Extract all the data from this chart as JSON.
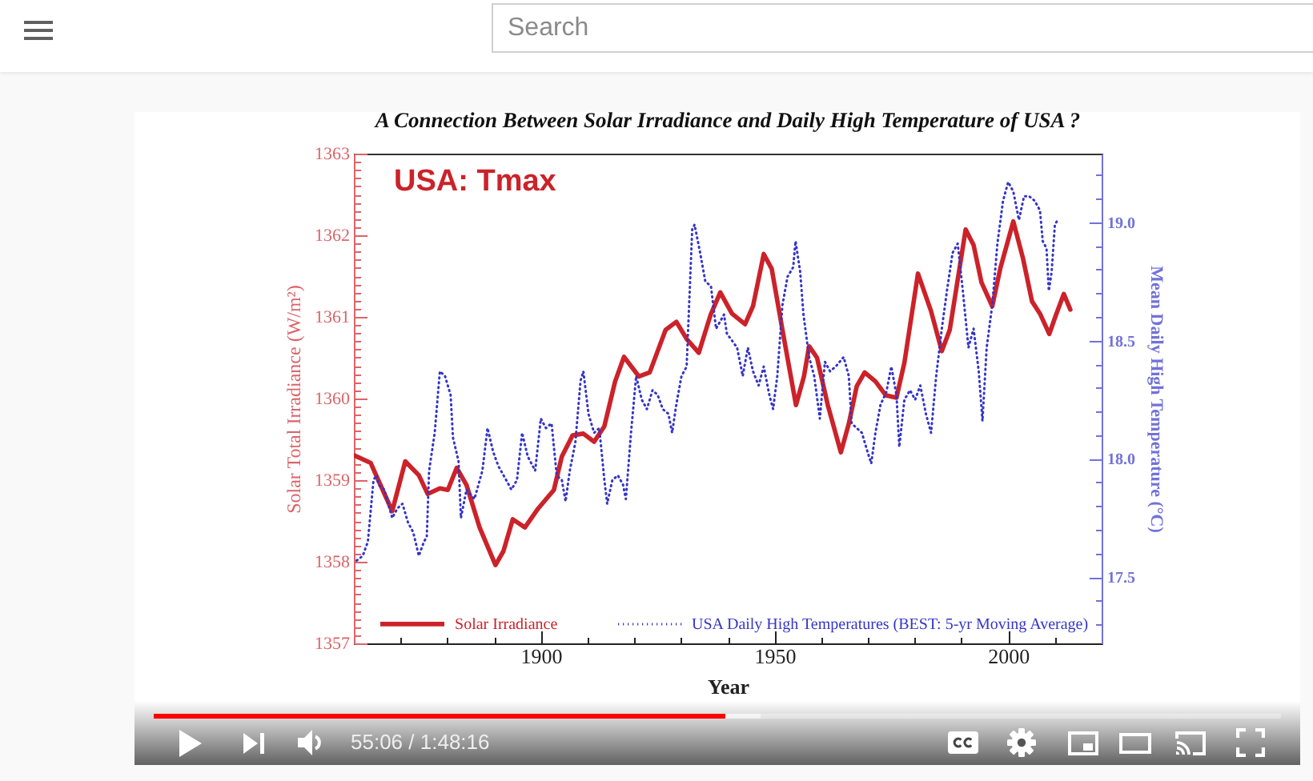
{
  "chart_data": {
    "type": "line",
    "title": "A Connection Between Solar Irradiance and Daily High Temperature of USA ?",
    "xlabel": "Year",
    "ylabel": "Solar Total Irradiance (W/m²)",
    "y2label": "Mean Daily High Temperature (°C)",
    "annotations": [
      "USA: Tmax",
      "Search",
      "55:06 / 1:48:16"
    ],
    "xlim": [
      1860,
      2020
    ],
    "xticks": [
      {
        "value": 1870,
        "label": null
      },
      {
        "value": 1880,
        "label": null
      },
      {
        "value": 1890,
        "label": null
      },
      {
        "value": 1900,
        "label": "1900"
      },
      {
        "value": 1910,
        "label": null
      },
      {
        "value": 1920,
        "label": null
      },
      {
        "value": 1930,
        "label": null
      },
      {
        "value": 1940,
        "label": null
      },
      {
        "value": 1950,
        "label": "1950"
      },
      {
        "value": 1960,
        "label": null
      },
      {
        "value": 1970,
        "label": null
      },
      {
        "value": 1980,
        "label": null
      },
      {
        "value": 1990,
        "label": null
      },
      {
        "value": 2000,
        "label": "2000"
      },
      {
        "value": 2010,
        "label": null
      }
    ],
    "ylim": [
      1357,
      1363
    ],
    "yticks": [
      {
        "value": 1357,
        "label": "1357"
      },
      {
        "value": 1357.1,
        "label": null
      },
      {
        "value": 1357.2,
        "label": null
      },
      {
        "value": 1357.3,
        "label": null
      },
      {
        "value": 1357.4,
        "label": null
      },
      {
        "value": 1357.5,
        "label": null
      },
      {
        "value": 1357.6,
        "label": null
      },
      {
        "value": 1357.7,
        "label": null
      },
      {
        "value": 1357.8,
        "label": null
      },
      {
        "value": 1357.9,
        "label": null
      },
      {
        "value": 1358,
        "label": "1358"
      },
      {
        "value": 1358.1,
        "label": null
      },
      {
        "value": 1358.2,
        "label": null
      },
      {
        "value": 1358.3,
        "label": null
      },
      {
        "value": 1358.4,
        "label": null
      },
      {
        "value": 1358.5,
        "label": null
      },
      {
        "value": 1358.6,
        "label": null
      },
      {
        "value": 1358.7,
        "label": null
      },
      {
        "value": 1358.8,
        "label": null
      },
      {
        "value": 1358.9,
        "label": null
      },
      {
        "value": 1359,
        "label": "1359"
      },
      {
        "value": 1359.1,
        "label": null
      },
      {
        "value": 1359.2,
        "label": null
      },
      {
        "value": 1359.3,
        "label": null
      },
      {
        "value": 1359.4,
        "label": null
      },
      {
        "value": 1359.5,
        "label": null
      },
      {
        "value": 1359.6,
        "label": null
      },
      {
        "value": 1359.7,
        "label": null
      },
      {
        "value": 1359.8,
        "label": null
      },
      {
        "value": 1359.9,
        "label": null
      },
      {
        "value": 1360,
        "label": "1360"
      },
      {
        "value": 1360.1,
        "label": null
      },
      {
        "value": 1360.2,
        "label": null
      },
      {
        "value": 1360.3,
        "label": null
      },
      {
        "value": 1360.4,
        "label": null
      },
      {
        "value": 1360.5,
        "label": null
      },
      {
        "value": 1360.6,
        "label": null
      },
      {
        "value": 1360.7,
        "label": null
      },
      {
        "value": 1360.8,
        "label": null
      },
      {
        "value": 1360.9,
        "label": null
      },
      {
        "value": 1361,
        "label": "1361"
      },
      {
        "value": 1361.1,
        "label": null
      },
      {
        "value": 1361.2,
        "label": null
      },
      {
        "value": 1361.3,
        "label": null
      },
      {
        "value": 1361.4,
        "label": null
      },
      {
        "value": 1361.5,
        "label": null
      },
      {
        "value": 1361.6,
        "label": null
      },
      {
        "value": 1361.7,
        "label": null
      },
      {
        "value": 1361.8,
        "label": null
      },
      {
        "value": 1361.9,
        "label": null
      },
      {
        "value": 1362,
        "label": "1362"
      },
      {
        "value": 1362.1,
        "label": null
      },
      {
        "value": 1362.2,
        "label": null
      },
      {
        "value": 1362.3,
        "label": null
      },
      {
        "value": 1362.4,
        "label": null
      },
      {
        "value": 1362.5,
        "label": null
      },
      {
        "value": 1362.6,
        "label": null
      },
      {
        "value": 1362.7,
        "label": null
      },
      {
        "value": 1362.8,
        "label": null
      },
      {
        "value": 1362.9,
        "label": null
      },
      {
        "value": 1363,
        "label": "1363"
      }
    ],
    "y2lim": [
      17.22,
      19.29
    ],
    "y2ticks": [
      {
        "value": 17.3,
        "label": null
      },
      {
        "value": 17.4,
        "label": null
      },
      {
        "value": 17.5,
        "label": "17.5"
      },
      {
        "value": 17.6,
        "label": null
      },
      {
        "value": 17.7,
        "label": null
      },
      {
        "value": 17.8,
        "label": null
      },
      {
        "value": 17.9,
        "label": null
      },
      {
        "value": 18,
        "label": "18.0"
      },
      {
        "value": 18.1,
        "label": null
      },
      {
        "value": 18.2,
        "label": null
      },
      {
        "value": 18.3,
        "label": null
      },
      {
        "value": 18.4,
        "label": null
      },
      {
        "value": 18.5,
        "label": "18.5"
      },
      {
        "value": 18.6,
        "label": null
      },
      {
        "value": 18.7,
        "label": null
      },
      {
        "value": 18.8,
        "label": null
      },
      {
        "value": 18.9,
        "label": null
      },
      {
        "value": 19,
        "label": "19.0"
      },
      {
        "value": 19.1,
        "label": null
      },
      {
        "value": 19.2,
        "label": null
      }
    ],
    "legend": "bottom",
    "series": [
      {
        "name": "Solar Irradiance",
        "color": "#cc2229",
        "line_style": "solid",
        "x": [
          1860.2,
          1863.6,
          1868.2,
          1871.0,
          1873.9,
          1875.8,
          1878.4,
          1880.1,
          1882.0,
          1884.1,
          1886.9,
          1890.3,
          1892.0,
          1894.0,
          1896.6,
          1899.4,
          1902.8,
          1904.5,
          1906.8,
          1909.1,
          1911.4,
          1913.6,
          1915.9,
          1917.8,
          1921.0,
          1923.3,
          1926.7,
          1929.0,
          1931.2,
          1933.8,
          1936.3,
          1938.4,
          1940.9,
          1943.7,
          1945.4,
          1947.7,
          1949.4,
          1951.7,
          1954.6,
          1956.3,
          1957.4,
          1959.1,
          1961.4,
          1964.2,
          1965.9,
          1967.6,
          1969.3,
          1971.6,
          1973.8,
          1976.1,
          1977.8,
          1980.7,
          1983.5,
          1985.8,
          1987.5,
          1990.9,
          1992.6,
          1994.3,
          1996.6,
          1998.3,
          2001.1,
          2003.2,
          2005.1,
          2006.8,
          2008.8,
          2010.2,
          2011.9,
          2013.3
        ],
        "values": [
          1359.3,
          1359.21,
          1358.62,
          1359.23,
          1359.06,
          1358.83,
          1358.9,
          1358.88,
          1359.15,
          1358.94,
          1358.42,
          1357.96,
          1358.13,
          1358.52,
          1358.42,
          1358.65,
          1358.88,
          1359.29,
          1359.55,
          1359.57,
          1359.47,
          1359.66,
          1360.21,
          1360.51,
          1360.27,
          1360.32,
          1360.84,
          1360.94,
          1360.73,
          1360.56,
          1361.02,
          1361.3,
          1361.04,
          1360.91,
          1361.13,
          1361.77,
          1361.59,
          1360.84,
          1359.92,
          1360.27,
          1360.64,
          1360.5,
          1359.92,
          1359.34,
          1359.69,
          1360.15,
          1360.32,
          1360.21,
          1360.04,
          1360.01,
          1360.44,
          1361.53,
          1361.07,
          1360.58,
          1360.84,
          1362.07,
          1361.88,
          1361.42,
          1361.13,
          1361.59,
          1362.17,
          1361.71,
          1361.19,
          1361.04,
          1360.79,
          1361.02,
          1361.28,
          1361.09
        ]
      },
      {
        "name": "USA Daily High Temperatures (BEST: 5-yr Moving Average)",
        "color": "#3535c8",
        "line_style": "dotted",
        "axis": "y2",
        "x": [
          1860.6,
          1861.9,
          1863.0,
          1864.2,
          1864.8,
          1865.3,
          1866.5,
          1868.2,
          1869.3,
          1870.4,
          1871.6,
          1872.7,
          1873.9,
          1875.0,
          1875.6,
          1876.1,
          1877.3,
          1878.4,
          1879.5,
          1880.7,
          1881.2,
          1882.4,
          1882.9,
          1884.1,
          1885.8,
          1887.5,
          1888.6,
          1889.8,
          1890.9,
          1892.6,
          1893.7,
          1894.9,
          1896.0,
          1897.2,
          1898.8,
          1900.0,
          1901.1,
          1902.3,
          1903.4,
          1904.5,
          1905.3,
          1906.2,
          1907.4,
          1908.5,
          1909.1,
          1910.2,
          1911.4,
          1912.5,
          1913.6,
          1914.2,
          1915.3,
          1916.5,
          1917.6,
          1918.2,
          1919.3,
          1920.4,
          1921.6,
          1922.7,
          1923.9,
          1925.0,
          1926.1,
          1927.3,
          1928.1,
          1929.0,
          1930.1,
          1931.2,
          1932.4,
          1932.9,
          1934.1,
          1935.2,
          1936.4,
          1937.5,
          1939.2,
          1939.8,
          1942.0,
          1943.2,
          1944.3,
          1945.4,
          1946.6,
          1947.7,
          1948.9,
          1949.7,
          1950.6,
          1951.7,
          1952.8,
          1954.0,
          1954.5,
          1955.5,
          1956.2,
          1957.4,
          1958.5,
          1959.7,
          1960.8,
          1961.9,
          1963.1,
          1964.8,
          1965.9,
          1966.5,
          1967.6,
          1968.7,
          1969.9,
          1970.7,
          1971.6,
          1972.7,
          1973.9,
          1975.0,
          1976.1,
          1976.7,
          1977.8,
          1979.0,
          1980.1,
          1981.2,
          1982.4,
          1983.5,
          1984.6,
          1985.8,
          1986.9,
          1988.1,
          1989.2,
          1990.3,
          1991.5,
          1992.6,
          1993.7,
          1994.5,
          1995.4,
          1996.6,
          1997.7,
          1998.9,
          2000.0,
          2001.1,
          2002.3,
          2003.4,
          2004.5,
          2005.7,
          2006.8,
          2007.4,
          2008.2,
          2008.7,
          2009.3,
          2010.0,
          2010.6
        ],
        "values": [
          17.57,
          17.59,
          17.65,
          17.91,
          17.93,
          17.89,
          17.87,
          17.75,
          17.79,
          17.81,
          17.73,
          17.69,
          17.59,
          17.65,
          17.67,
          17.95,
          18.11,
          18.37,
          18.35,
          18.27,
          18.09,
          17.99,
          17.75,
          17.87,
          17.83,
          17.95,
          18.13,
          18.03,
          17.97,
          17.91,
          17.87,
          17.91,
          18.11,
          18.01,
          17.95,
          18.17,
          18.13,
          18.15,
          17.93,
          17.91,
          17.82,
          17.95,
          18.07,
          18.33,
          18.37,
          18.19,
          18.11,
          18.13,
          17.91,
          17.81,
          17.91,
          17.93,
          17.89,
          17.83,
          18.11,
          18.35,
          18.25,
          18.21,
          18.29,
          18.27,
          18.21,
          18.19,
          18.11,
          18.23,
          18.35,
          18.39,
          18.97,
          18.99,
          18.87,
          18.75,
          18.73,
          18.55,
          18.61,
          18.53,
          18.47,
          18.35,
          18.47,
          18.37,
          18.31,
          18.39,
          18.27,
          18.21,
          18.35,
          18.65,
          18.77,
          18.81,
          18.92,
          18.79,
          18.61,
          18.43,
          18.35,
          18.17,
          18.41,
          18.37,
          18.39,
          18.43,
          18.35,
          18.15,
          18.13,
          18.11,
          18.03,
          17.98,
          18.11,
          18.23,
          18.28,
          18.39,
          18.27,
          18.05,
          18.25,
          18.29,
          18.25,
          18.31,
          18.19,
          18.11,
          18.35,
          18.55,
          18.71,
          18.87,
          18.91,
          18.71,
          18.47,
          18.55,
          18.37,
          18.16,
          18.47,
          18.65,
          18.91,
          19.09,
          19.17,
          19.13,
          19.01,
          19.11,
          19.11,
          19.09,
          19.05,
          18.92,
          18.89,
          18.71,
          18.79,
          18.99,
          19.01
        ]
      }
    ]
  }
}
